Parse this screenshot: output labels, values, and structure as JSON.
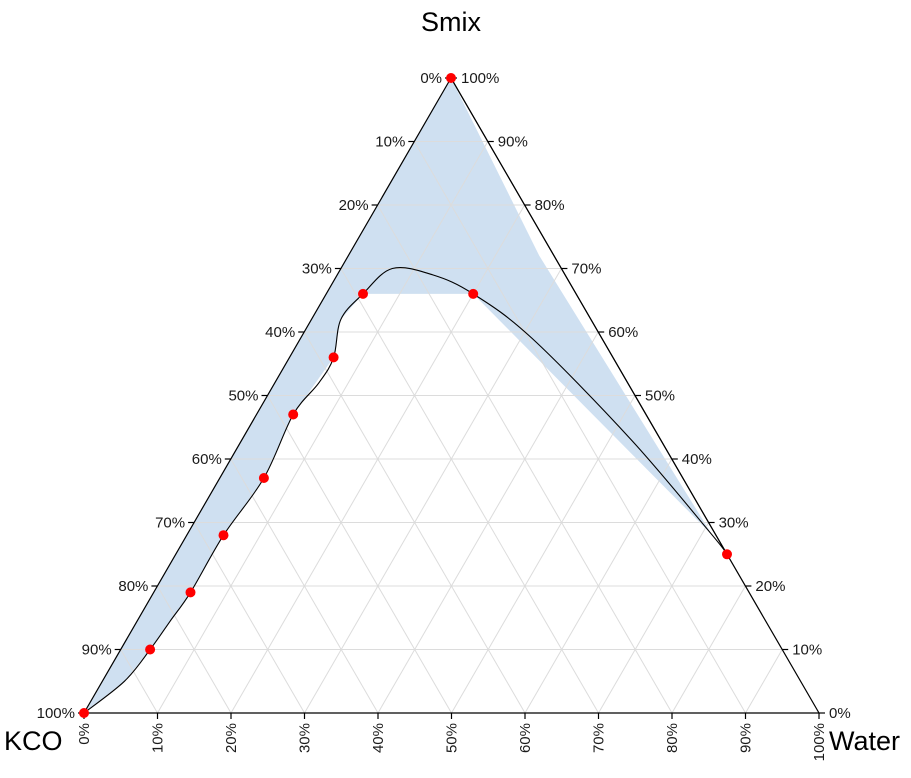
{
  "chart_data": {
    "type": "ternary",
    "title": "",
    "vertices": {
      "top": "Smix",
      "left": "KCO",
      "right": "Water"
    },
    "tick_labels": [
      "0%",
      "10%",
      "20%",
      "30%",
      "40%",
      "50%",
      "60%",
      "70%",
      "80%",
      "90%",
      "100%"
    ],
    "grid": true,
    "colors": {
      "region_fill": "#cfe0f1",
      "points": "#ff0000",
      "axis": "#000000",
      "grid": "#dcdcdc"
    },
    "points": [
      {
        "kco": 100,
        "smix": 0,
        "water": 0
      },
      {
        "kco": 86,
        "smix": 10,
        "water": 4
      },
      {
        "kco": 76,
        "smix": 19,
        "water": 5
      },
      {
        "kco": 67,
        "smix": 28,
        "water": 5
      },
      {
        "kco": 57,
        "smix": 37,
        "water": 6
      },
      {
        "kco": 48,
        "smix": 47,
        "water": 5
      },
      {
        "kco": 38,
        "smix": 56,
        "water": 6
      },
      {
        "kco": 29,
        "smix": 66,
        "water": 5
      },
      {
        "kco": 0,
        "smix": 100,
        "water": 0
      },
      {
        "kco": 14,
        "smix": 66,
        "water": 20
      },
      {
        "kco": 0,
        "smix": 25,
        "water": 75
      }
    ],
    "curve_path": [
      {
        "kco": 100,
        "smix": 0,
        "water": 0
      },
      {
        "kco": 92,
        "smix": 5,
        "water": 3
      },
      {
        "kco": 86,
        "smix": 10,
        "water": 4
      },
      {
        "kco": 81,
        "smix": 14.5,
        "water": 4.5
      },
      {
        "kco": 76,
        "smix": 19,
        "water": 5
      },
      {
        "kco": 67,
        "smix": 28,
        "water": 5
      },
      {
        "kco": 57,
        "smix": 37,
        "water": 6
      },
      {
        "kco": 48,
        "smix": 47,
        "water": 5
      },
      {
        "kco": 42,
        "smix": 52,
        "water": 6
      },
      {
        "kco": 38,
        "smix": 56,
        "water": 6
      },
      {
        "kco": 34,
        "smix": 62,
        "water": 4
      },
      {
        "kco": 29,
        "smix": 66,
        "water": 5
      },
      {
        "kco": 23,
        "smix": 70,
        "water": 7
      },
      {
        "kco": 18,
        "smix": 69,
        "water": 13
      },
      {
        "kco": 14,
        "smix": 66,
        "water": 20
      },
      {
        "kco": 9.5,
        "smix": 59,
        "water": 31.5
      },
      {
        "kco": 4,
        "smix": 43,
        "water": 53
      },
      {
        "kco": 0.5,
        "smix": 28,
        "water": 71.5
      },
      {
        "kco": 0,
        "smix": 25,
        "water": 75
      },
      {
        "kco": 0,
        "smix": 27,
        "water": 73
      },
      {
        "kco": 0,
        "smix": 40,
        "water": 60
      },
      {
        "kco": 0,
        "smix": 60,
        "water": 40
      },
      {
        "kco": 0,
        "smix": 80,
        "water": 20
      },
      {
        "kco": 0,
        "smix": 100,
        "water": 0
      }
    ],
    "region": [
      {
        "kco": 0,
        "smix": 100,
        "water": 0
      },
      {
        "kco": 2,
        "smix": 72,
        "water": 26
      },
      {
        "kco": 0.5,
        "smix": 28,
        "water": 71.5
      },
      {
        "kco": 14,
        "smix": 66,
        "water": 20
      },
      {
        "kco": 29,
        "smix": 66,
        "water": 5
      },
      {
        "kco": 34,
        "smix": 62,
        "water": 4
      },
      {
        "kco": 38,
        "smix": 56,
        "water": 6
      },
      {
        "kco": 48,
        "smix": 47,
        "water": 5
      },
      {
        "kco": 57,
        "smix": 37,
        "water": 6
      },
      {
        "kco": 67,
        "smix": 28,
        "water": 5
      },
      {
        "kco": 76,
        "smix": 19,
        "water": 5
      },
      {
        "kco": 81,
        "smix": 14.5,
        "water": 4.5
      },
      {
        "kco": 86,
        "smix": 10,
        "water": 4
      },
      {
        "kco": 92,
        "smix": 5,
        "water": 3
      },
      {
        "kco": 100,
        "smix": 0,
        "water": 0
      }
    ]
  }
}
